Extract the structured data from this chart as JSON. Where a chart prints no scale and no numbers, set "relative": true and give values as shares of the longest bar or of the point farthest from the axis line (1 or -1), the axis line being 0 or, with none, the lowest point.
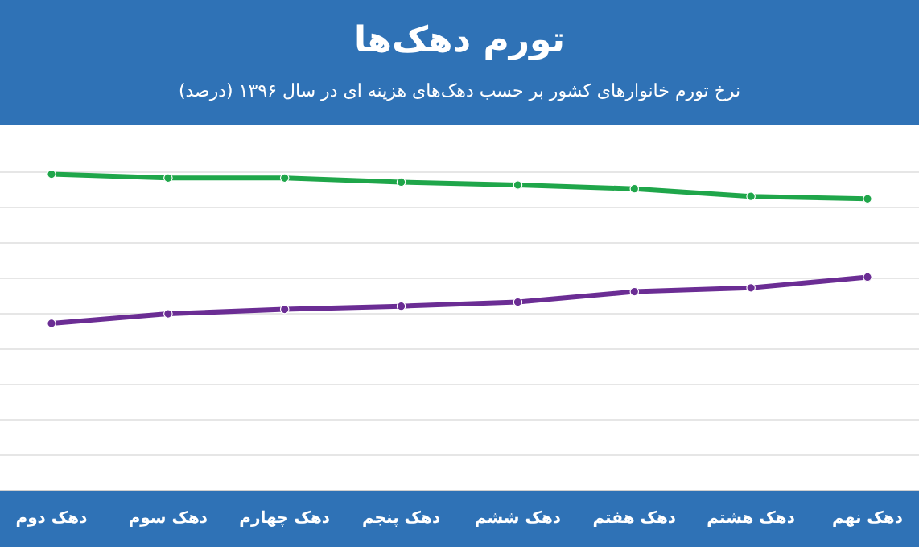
{
  "chart_data": {
    "type": "line",
    "title": "تورم دهک‌ها",
    "subtitle": "نرخ تورم خانوارهای کشور بر حسب دهک‌های هزینه ای در سال ۱۳۹۶ (درصد)",
    "categories": [
      "دهک دوم",
      "دهک سوم",
      "دهک چهارم",
      "دهک پنجم",
      "دهک ششم",
      "دهک هفتم",
      "دهک هشتم",
      "دهک نهم"
    ],
    "relative": true,
    "grid": "y",
    "marker": "circle",
    "line_style": "solid",
    "series": [
      {
        "color": "#1fa64a",
        "values": [
          1,
          0.988,
          0.988,
          0.975,
          0.966,
          0.954,
          0.93,
          0.922
        ]
      },
      {
        "color": "#6b2d94",
        "values": [
          0.529,
          0.559,
          0.573,
          0.583,
          0.596,
          0.629,
          0.641,
          0.675
        ]
      }
    ]
  }
}
